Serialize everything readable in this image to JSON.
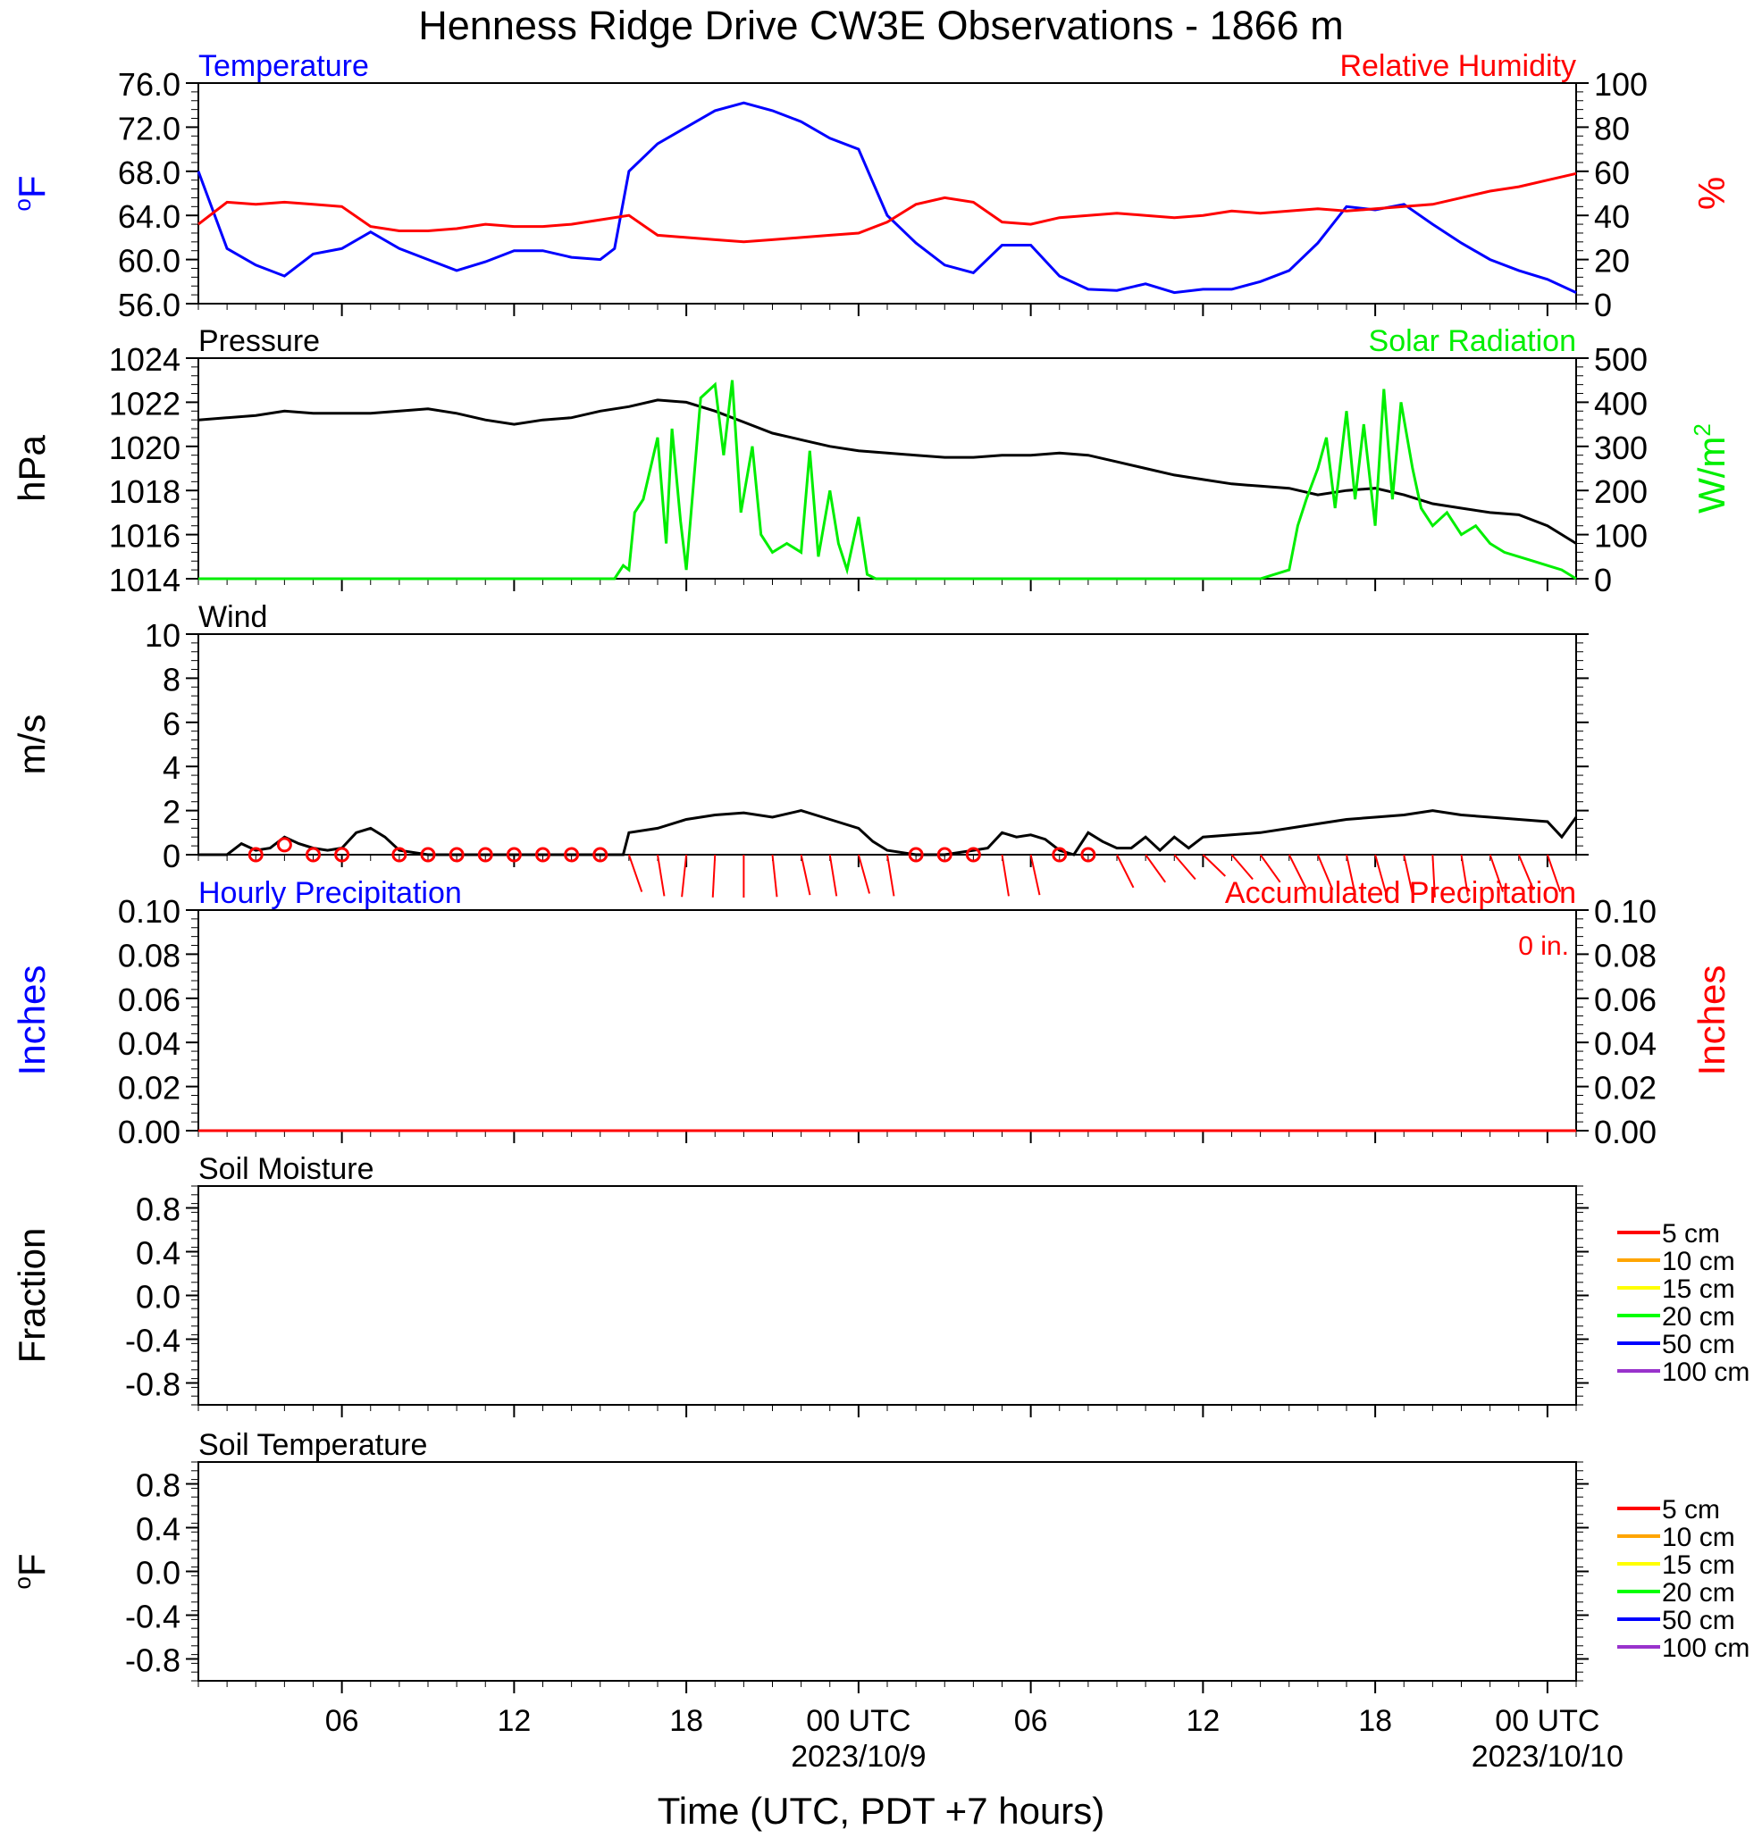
{
  "title": "Henness Ridge Drive CW3E Observations - 1866 m",
  "colors": {
    "temperature": "#0000ff",
    "humidity": "#ff0000",
    "pressure": "#000000",
    "solar": "#00ee00",
    "wind": "#000000",
    "wind_barb": "#ff0000",
    "precip_hourly": "#0000ff",
    "precip_accum": "#ff0000"
  },
  "time_axis": {
    "label": "Time (UTC, PDT +7 hours)",
    "ticks": [
      {
        "hour": 6,
        "label": "06"
      },
      {
        "hour": 12,
        "label": "12"
      },
      {
        "hour": 18,
        "label": "18"
      },
      {
        "hour": 24,
        "label": "00 UTC",
        "sublabel": "2023/10/9"
      },
      {
        "hour": 30,
        "label": "06"
      },
      {
        "hour": 36,
        "label": "12"
      },
      {
        "hour": 42,
        "label": "18"
      },
      {
        "hour": 48,
        "label": "00 UTC",
        "sublabel": "2023/10/10"
      }
    ],
    "range_hours": [
      1,
      49
    ]
  },
  "legend_depths": [
    "5 cm",
    "10 cm",
    "15 cm",
    "20 cm",
    "50 cm",
    "100 cm"
  ],
  "legend_colors": [
    "#ff0000",
    "#ffa500",
    "#ffff00",
    "#00ff00",
    "#0000ff",
    "#9933cc"
  ],
  "chart_data": [
    {
      "type": "line",
      "title_left": "Temperature",
      "title_right": "Relative Humidity",
      "ylabel_left": "oF",
      "ylabel_right": "%",
      "ylim_left": [
        56,
        76
      ],
      "ylim_right": [
        0,
        100
      ],
      "yticks_left": [
        "56.0",
        "60.0",
        "64.0",
        "68.0",
        "72.0",
        "76.0"
      ],
      "yticks_right": [
        "0",
        "20",
        "40",
        "60",
        "80",
        "100"
      ],
      "series": [
        {
          "name": "Temperature",
          "axis": "left",
          "x": [
            1,
            2,
            3,
            4,
            5,
            6,
            7,
            8,
            9,
            10,
            11,
            12,
            13,
            14,
            15,
            15.5,
            16,
            17,
            18,
            19,
            20,
            21,
            22,
            23,
            24,
            24.5,
            25,
            26,
            27,
            28,
            29,
            30,
            31,
            32,
            33,
            34,
            35,
            36,
            37,
            38,
            39,
            40,
            41,
            42,
            43,
            44,
            45,
            46,
            47,
            48,
            49
          ],
          "y": [
            68,
            61,
            59.5,
            58.5,
            60.5,
            61,
            62.5,
            61,
            60,
            59,
            59.8,
            60.8,
            60.8,
            60.2,
            60,
            61,
            68,
            70.5,
            72,
            73.5,
            74.2,
            73.5,
            72.5,
            71,
            70,
            67,
            64,
            61.5,
            59.5,
            58.8,
            61.3,
            61.3,
            58.5,
            57.3,
            57.2,
            57.8,
            57,
            57.3,
            57.3,
            58,
            59,
            61.5,
            64.8,
            64.5,
            65,
            63.2,
            61.5,
            60,
            59,
            58.2,
            57
          ]
        },
        {
          "name": "Relative Humidity",
          "axis": "right",
          "x": [
            1,
            2,
            3,
            4,
            5,
            6,
            7,
            8,
            9,
            10,
            11,
            12,
            13,
            14,
            15,
            16,
            17,
            18,
            19,
            20,
            21,
            22,
            23,
            24,
            25,
            26,
            27,
            28,
            29,
            30,
            31,
            32,
            33,
            34,
            35,
            36,
            37,
            38,
            39,
            40,
            41,
            42,
            43,
            44,
            45,
            46,
            47,
            48,
            49
          ],
          "y": [
            36,
            46,
            45,
            46,
            45,
            44,
            35,
            33,
            33,
            34,
            36,
            35,
            35,
            36,
            38,
            40,
            31,
            30,
            29,
            28,
            29,
            30,
            31,
            32,
            37,
            45,
            48,
            46,
            37,
            36,
            39,
            40,
            41,
            40,
            39,
            40,
            42,
            41,
            42,
            43,
            42,
            43,
            44,
            45,
            48,
            51,
            53,
            56,
            59
          ]
        }
      ]
    },
    {
      "type": "line",
      "title_left": "Pressure",
      "title_right": "Solar Radiation",
      "ylabel_left": "hPa",
      "ylabel_right": "W/m2",
      "ylim_left": [
        1014,
        1024
      ],
      "ylim_right": [
        0,
        500
      ],
      "yticks_left": [
        "1014",
        "1016",
        "1018",
        "1020",
        "1022",
        "1024"
      ],
      "yticks_right": [
        "0",
        "100",
        "200",
        "300",
        "400",
        "500"
      ],
      "series": [
        {
          "name": "Pressure",
          "axis": "left",
          "x": [
            1,
            3,
            4,
            5,
            6,
            7,
            8,
            9,
            10,
            11,
            12,
            13,
            14,
            15,
            16,
            17,
            18,
            19,
            20,
            21,
            22,
            23,
            24,
            25,
            26,
            27,
            28,
            29,
            30,
            31,
            32,
            33,
            34,
            35,
            36,
            37,
            38,
            39,
            40,
            41,
            42,
            43,
            44,
            45,
            46,
            47,
            48,
            49
          ],
          "y": [
            1021.2,
            1021.4,
            1021.6,
            1021.5,
            1021.5,
            1021.5,
            1021.6,
            1021.7,
            1021.5,
            1021.2,
            1021.0,
            1021.2,
            1021.3,
            1021.6,
            1021.8,
            1022.1,
            1022.0,
            1021.6,
            1021.1,
            1020.6,
            1020.3,
            1020.0,
            1019.8,
            1019.7,
            1019.6,
            1019.5,
            1019.5,
            1019.6,
            1019.6,
            1019.7,
            1019.6,
            1019.3,
            1019.0,
            1018.7,
            1018.5,
            1018.3,
            1018.2,
            1018.1,
            1017.8,
            1018.0,
            1018.1,
            1017.8,
            1017.4,
            1017.2,
            1017.0,
            1016.9,
            1016.4,
            1015.6
          ]
        },
        {
          "name": "Solar Radiation",
          "axis": "right",
          "x": [
            1,
            15.5,
            15.8,
            16,
            16.2,
            16.5,
            17,
            17.3,
            17.5,
            17.8,
            18,
            18.5,
            19,
            19.3,
            19.6,
            19.9,
            20.3,
            20.6,
            21,
            21.5,
            22,
            22.3,
            22.6,
            23,
            23.3,
            23.6,
            24,
            24.3,
            24.6,
            25,
            38,
            39,
            39.3,
            39.6,
            40,
            40.3,
            40.6,
            41,
            41.3,
            41.6,
            42,
            42.3,
            42.6,
            42.9,
            43.3,
            43.6,
            44,
            44.5,
            45,
            45.5,
            46,
            46.5,
            47,
            47.5,
            48,
            48.5,
            49
          ],
          "y": [
            0,
            0,
            30,
            20,
            150,
            180,
            320,
            80,
            340,
            130,
            20,
            410,
            440,
            280,
            450,
            150,
            300,
            100,
            60,
            80,
            60,
            290,
            50,
            200,
            80,
            20,
            140,
            10,
            0,
            0,
            0,
            20,
            120,
            180,
            250,
            320,
            160,
            380,
            180,
            350,
            120,
            430,
            180,
            400,
            250,
            160,
            120,
            150,
            100,
            120,
            80,
            60,
            50,
            40,
            30,
            20,
            0
          ]
        }
      ]
    },
    {
      "type": "line",
      "title_left": "Wind",
      "ylabel_left": "m/s",
      "ylim_left": [
        0,
        10
      ],
      "yticks_left": [
        "0",
        "2",
        "4",
        "6",
        "8",
        "10"
      ],
      "series": [
        {
          "name": "Wind",
          "axis": "left",
          "x": [
            1,
            2,
            2.5,
            3,
            3.5,
            4,
            4.5,
            5,
            5.5,
            6,
            6.5,
            7,
            7.5,
            8,
            9,
            10,
            11,
            12,
            13,
            14,
            15,
            15.8,
            16,
            17,
            18,
            19,
            20,
            21,
            22,
            23,
            24,
            24.5,
            25,
            26,
            27,
            28,
            28.5,
            29,
            29.5,
            30,
            30.5,
            31,
            31.5,
            32,
            32.5,
            33,
            33.5,
            34,
            34.5,
            35,
            35.5,
            36,
            37,
            38,
            39,
            40,
            41,
            42,
            43,
            44,
            45,
            46,
            47,
            48,
            48.5,
            49
          ],
          "y": [
            0,
            0,
            0.5,
            0.2,
            0.3,
            0.8,
            0.5,
            0.3,
            0.2,
            0.3,
            1.0,
            1.2,
            0.8,
            0.2,
            0,
            0,
            0,
            0,
            0,
            0,
            0,
            0,
            1.0,
            1.2,
            1.6,
            1.8,
            1.9,
            1.7,
            2.0,
            1.6,
            1.2,
            0.6,
            0.2,
            0,
            0,
            0.2,
            0.3,
            1.0,
            0.8,
            0.9,
            0.7,
            0.2,
            0,
            1.0,
            0.6,
            0.3,
            0.3,
            0.8,
            0.2,
            0.8,
            0.3,
            0.8,
            0.9,
            1.0,
            1.2,
            1.4,
            1.6,
            1.7,
            1.8,
            2.0,
            1.8,
            1.7,
            1.6,
            1.5,
            0.8,
            1.7
          ]
        },
        {
          "name": "Wind Calm",
          "axis": "left",
          "x": [
            3,
            4,
            5,
            6,
            8,
            9,
            10,
            11,
            12,
            13,
            14,
            15,
            26,
            27,
            28,
            31,
            32
          ],
          "y": [
            0,
            0.45,
            0,
            0,
            0,
            0,
            0,
            0,
            0,
            0,
            0,
            0,
            0,
            0,
            0,
            0,
            0
          ]
        },
        {
          "name": "Wind Barb",
          "axis": "left",
          "x": [
            16,
            17,
            18,
            19,
            20,
            21,
            22,
            23,
            24,
            25,
            29,
            30,
            33,
            34,
            35,
            36,
            37,
            38,
            39,
            40,
            41,
            42,
            43,
            44,
            45,
            46,
            47,
            48
          ],
          "y": [
            150,
            165,
            190,
            185,
            180,
            170,
            160,
            165,
            155,
            165,
            165,
            160,
            140,
            130,
            125,
            120,
            125,
            130,
            140,
            145,
            160,
            155,
            160,
            175,
            165,
            150,
            145,
            150
          ]
        }
      ]
    },
    {
      "type": "line",
      "title_left": "Hourly Precipitation",
      "title_right": "Accumulated Precipitation",
      "annotation": "0 in.",
      "ylabel_left": "Inches",
      "ylabel_right": "Inches",
      "ylim_left": [
        0,
        0.1
      ],
      "ylim_right": [
        0,
        0.1
      ],
      "yticks_left": [
        "0.00",
        "0.02",
        "0.04",
        "0.06",
        "0.08",
        "0.10"
      ],
      "yticks_right": [
        "0.00",
        "0.02",
        "0.04",
        "0.06",
        "0.08",
        "0.10"
      ],
      "series": [
        {
          "name": "Hourly Precipitation",
          "axis": "left",
          "x": [
            1,
            49
          ],
          "y": [
            0,
            0
          ]
        },
        {
          "name": "Accumulated Precipitation",
          "axis": "right",
          "x": [
            1,
            49
          ],
          "y": [
            0,
            0
          ]
        }
      ]
    },
    {
      "type": "line",
      "title_left": "Soil Moisture",
      "ylabel_left": "Fraction",
      "ylim_left": [
        -1,
        1
      ],
      "yticks_left": [
        "-0.8",
        "-0.4",
        "0.0",
        "0.4",
        "0.8"
      ],
      "series": []
    },
    {
      "type": "line",
      "title_left": "Soil Temperature",
      "ylabel_left": "oF",
      "ylim_left": [
        -1,
        1
      ],
      "yticks_left": [
        "-0.8",
        "-0.4",
        "0.0",
        "0.4",
        "0.8"
      ],
      "series": []
    }
  ]
}
